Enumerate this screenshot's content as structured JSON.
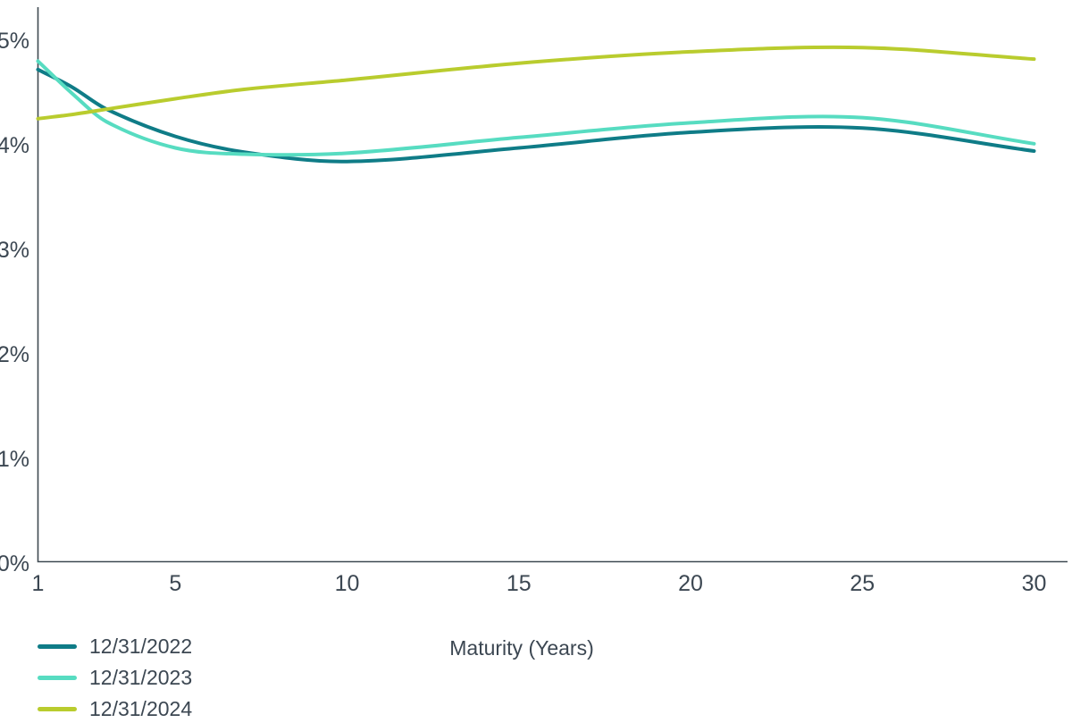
{
  "chart_data": {
    "type": "line",
    "title": "",
    "xlabel": "Maturity (Years)",
    "ylabel": "",
    "x": [
      1,
      2,
      3,
      5,
      7,
      10,
      15,
      20,
      25,
      30
    ],
    "series": [
      {
        "name": "12/31/2022",
        "color": "#0f7c87",
        "values": [
          4.72,
          4.55,
          4.34,
          4.08,
          3.93,
          3.84,
          3.97,
          4.12,
          4.16,
          3.94
        ]
      },
      {
        "name": "12/31/2023",
        "color": "#57dcc1",
        "values": [
          4.8,
          4.49,
          4.22,
          3.97,
          3.91,
          3.92,
          4.07,
          4.21,
          4.26,
          4.01
        ]
      },
      {
        "name": "12/31/2024",
        "color": "#b9cc2e",
        "values": [
          4.25,
          4.29,
          4.34,
          4.44,
          4.53,
          4.62,
          4.78,
          4.89,
          4.93,
          4.82
        ]
      }
    ],
    "x_ticks": [
      1,
      5,
      10,
      15,
      20,
      25,
      30
    ],
    "y_ticks": [
      "0%",
      "1%",
      "2%",
      "3%",
      "4%",
      "5%"
    ],
    "xlim": [
      1,
      30
    ],
    "ylim": [
      0,
      5
    ],
    "grid": false,
    "legend_position": "bottom-left"
  },
  "colors": {
    "text": "#3c4752",
    "axis": "#3f4a52",
    "background": "#ffffff"
  }
}
